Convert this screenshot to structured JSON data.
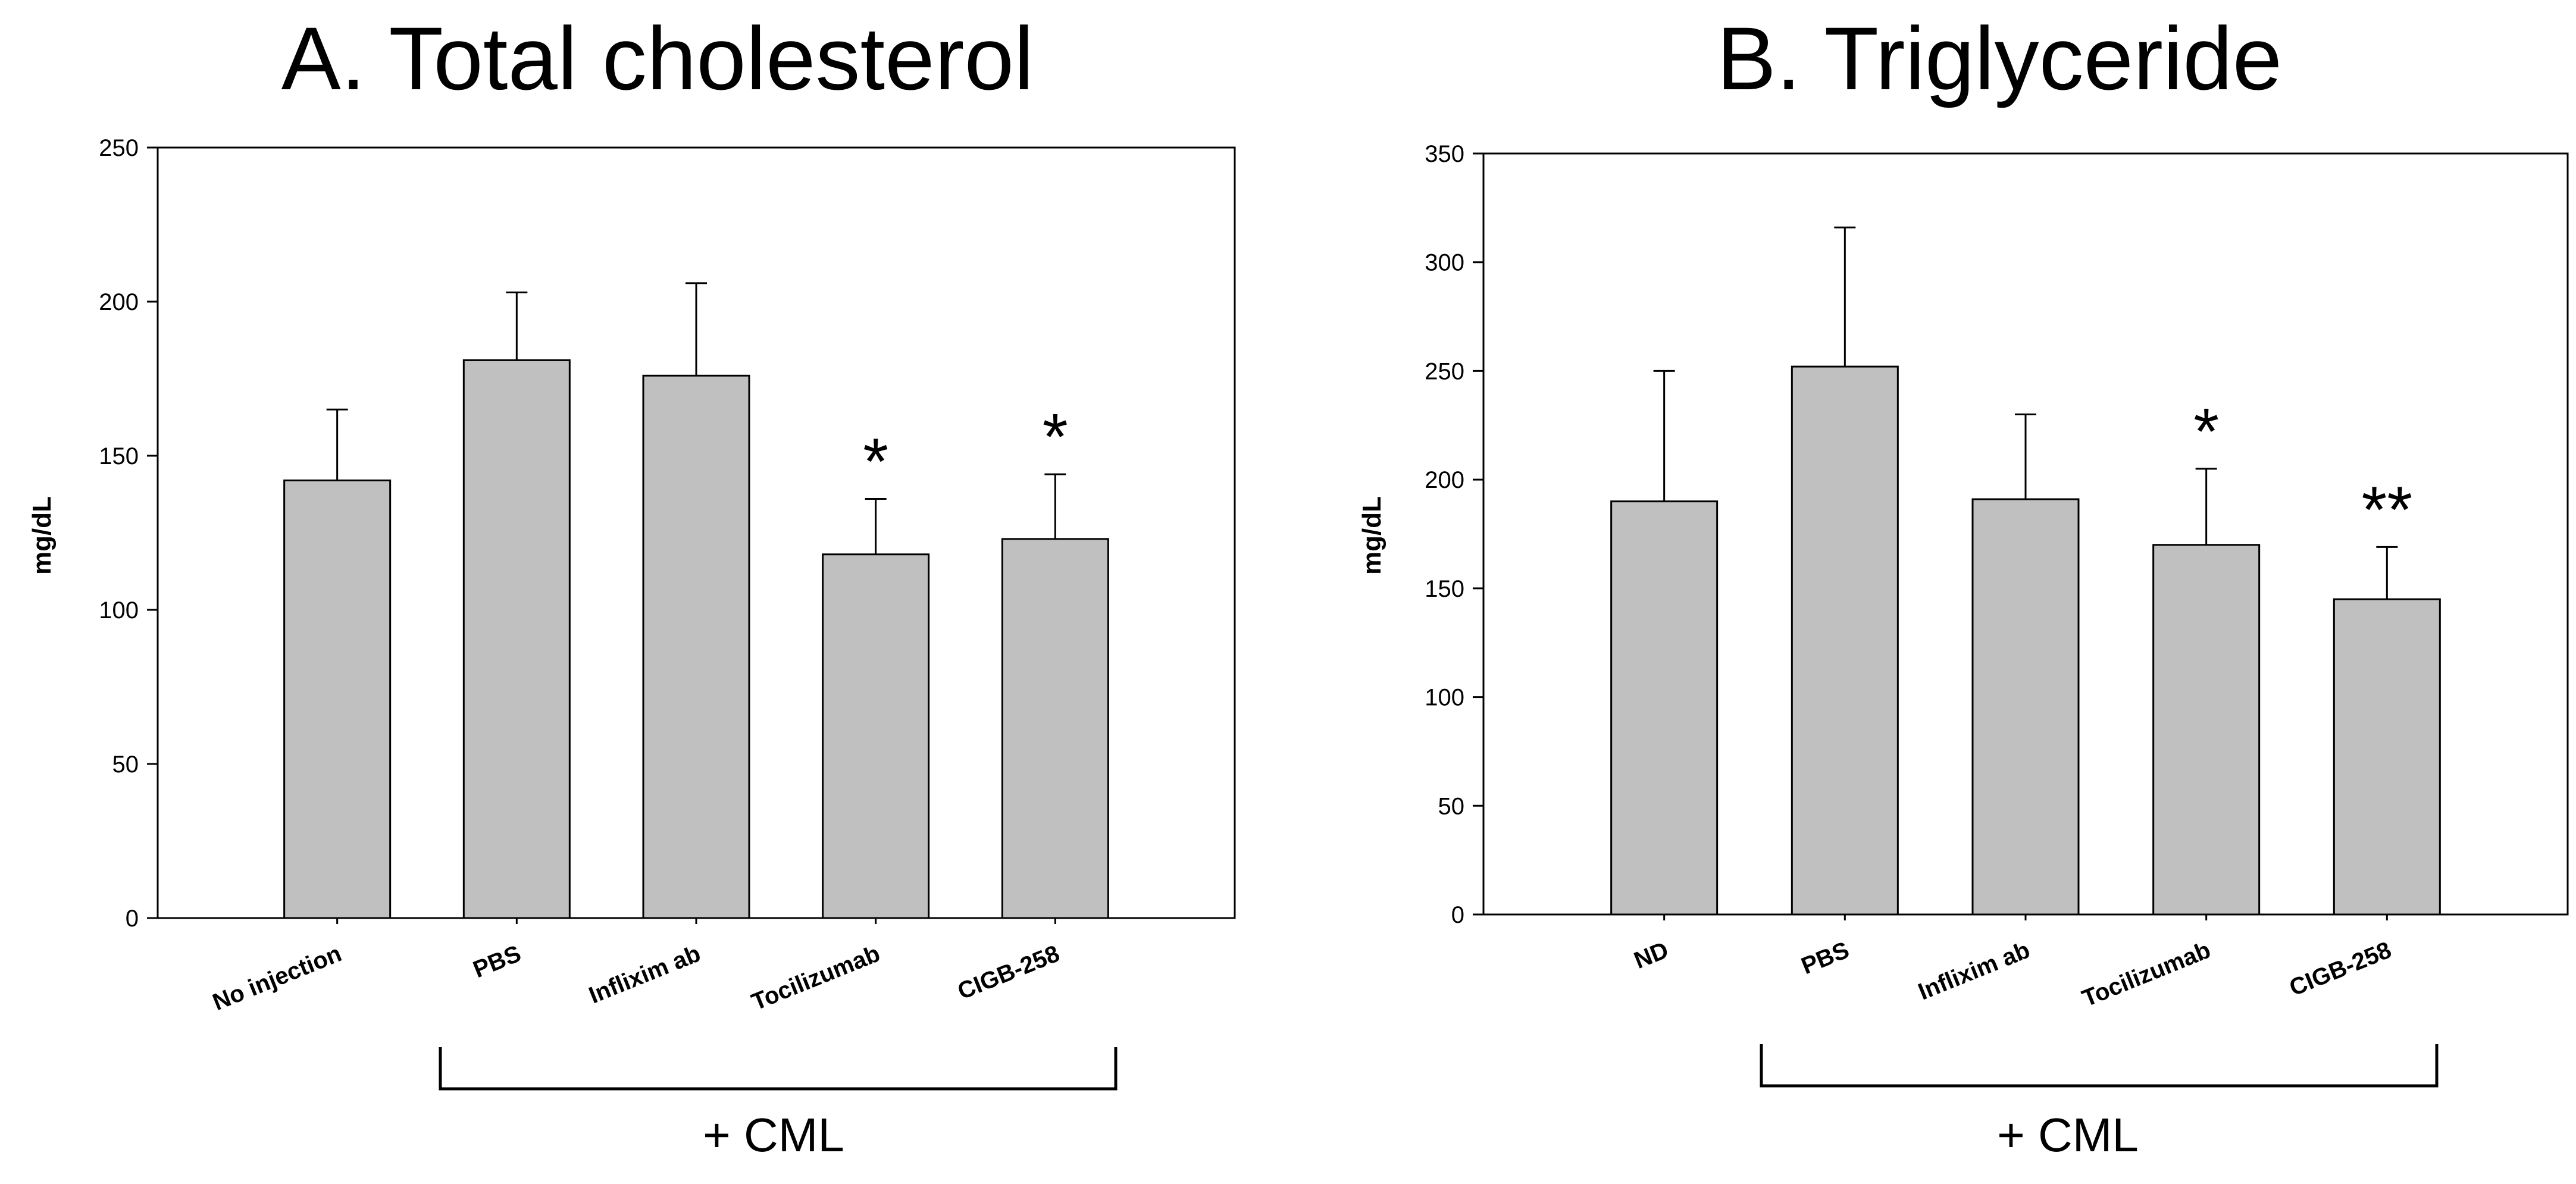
{
  "chart_data": [
    {
      "type": "bar",
      "title": "A. Total cholesterol",
      "ylabel": "mg/dL",
      "xlabel": "",
      "ylim": [
        0,
        250
      ],
      "yticks": [
        0,
        50,
        100,
        150,
        200,
        250
      ],
      "categories": [
        "No injection",
        "PBS",
        "Inflixim ab",
        "Tocilizumab",
        "CIGB-258"
      ],
      "values": [
        142,
        181,
        176,
        118,
        123
      ],
      "errors": [
        23,
        22,
        30,
        18,
        21
      ],
      "annotations": [
        "",
        "",
        "",
        "*",
        "*"
      ],
      "group_label": "+ CML",
      "grid": false
    },
    {
      "type": "bar",
      "title": "B. Triglyceride",
      "ylabel": "mg/dL",
      "xlabel": "",
      "ylim": [
        0,
        350
      ],
      "yticks": [
        0,
        50,
        100,
        150,
        200,
        250,
        300,
        350
      ],
      "categories": [
        "ND",
        "PBS",
        "Inflixim ab",
        "Tocilizumab",
        "CIGB-258"
      ],
      "values": [
        190,
        252,
        191,
        170,
        145
      ],
      "errors": [
        60,
        64,
        39,
        35,
        24
      ],
      "annotations": [
        "",
        "",
        "",
        "*",
        "**"
      ],
      "group_label": "+ CML",
      "grid": false
    }
  ],
  "colors": {
    "bar_fill": "#c0c0c0",
    "stroke": "#000000"
  }
}
